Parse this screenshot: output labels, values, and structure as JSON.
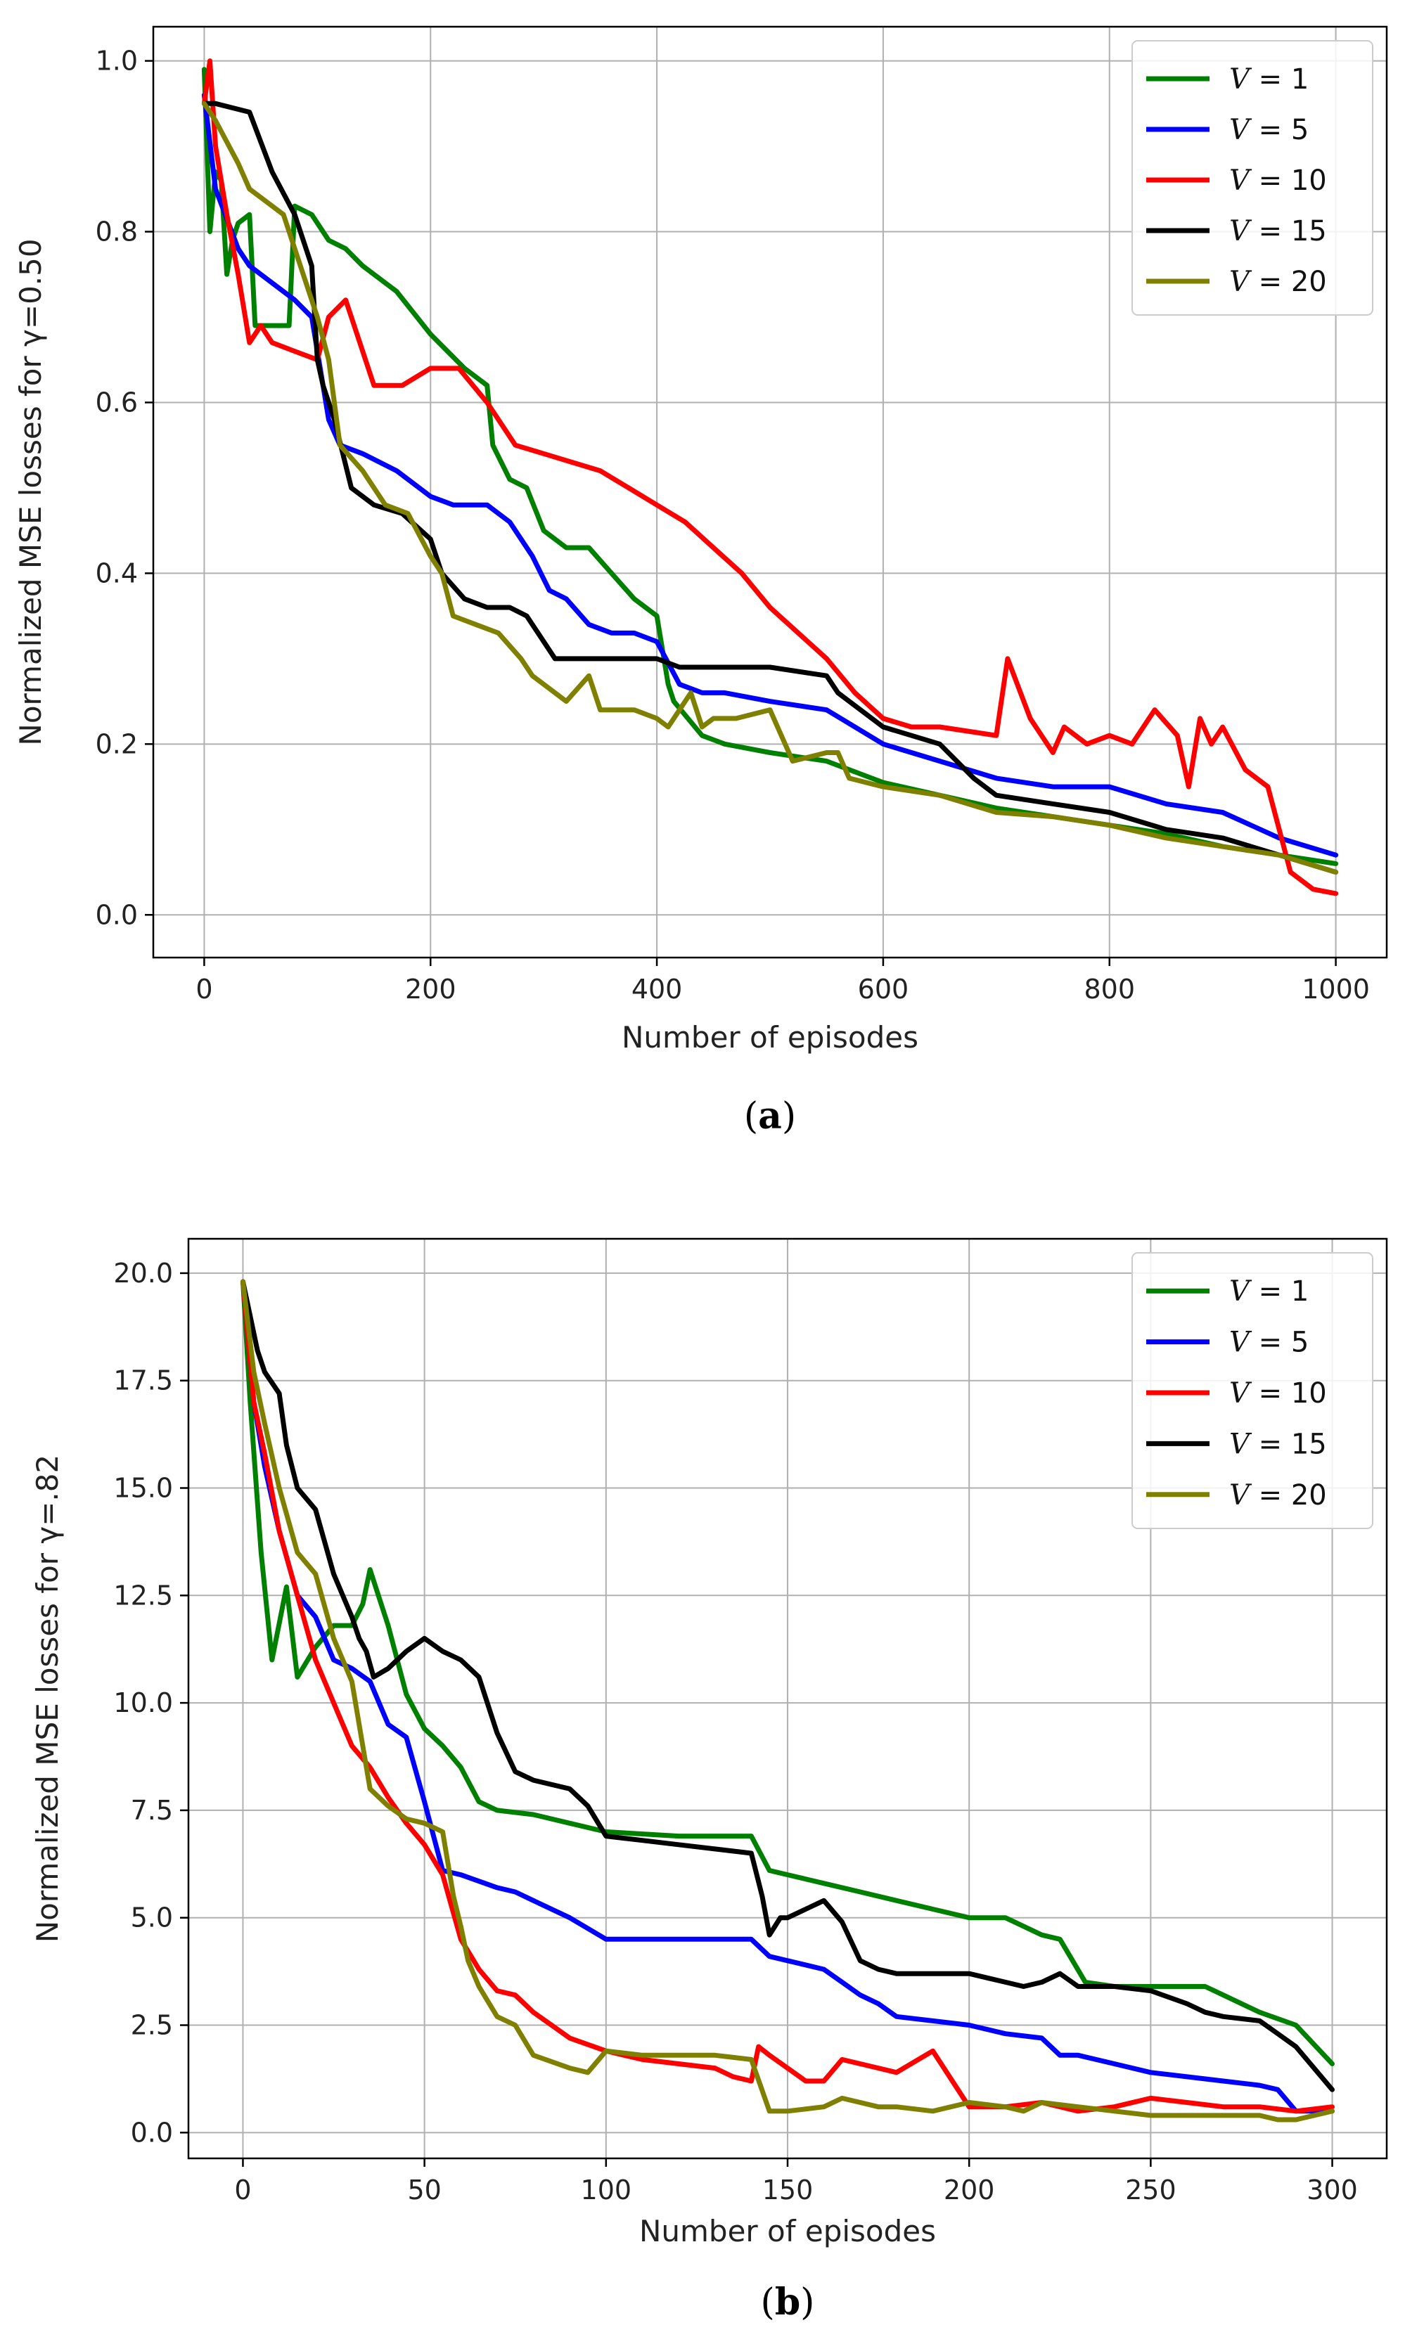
{
  "chart_data": [
    {
      "type": "line",
      "panel_caption": "(a)",
      "caption_letter": "a",
      "xlabel": "Number of episodes",
      "ylabel": "Normalized MSE losses for γ=0.50",
      "xlim": [
        -45,
        1045
      ],
      "ylim": [
        -0.05,
        1.04
      ],
      "xticks": [
        0,
        200,
        400,
        600,
        800,
        1000
      ],
      "yticks": [
        0.0,
        0.2,
        0.4,
        0.6,
        0.8,
        1.0
      ],
      "ytick_decimals": 1,
      "grid": true,
      "legend_position": "top-right",
      "series": [
        {
          "name": "V = 1",
          "var": "V",
          "value": "1",
          "color": "#008000",
          "x": [
            0,
            5,
            10,
            15,
            20,
            25,
            30,
            40,
            45,
            60,
            75,
            80,
            95,
            110,
            125,
            140,
            170,
            200,
            230,
            250,
            255,
            270,
            285,
            300,
            320,
            340,
            360,
            380,
            400,
            410,
            415,
            440,
            460,
            500,
            550,
            600,
            650,
            700,
            750,
            800,
            850,
            900,
            950,
            1000
          ],
          "y": [
            0.99,
            0.8,
            0.87,
            0.86,
            0.75,
            0.79,
            0.81,
            0.82,
            0.69,
            0.69,
            0.69,
            0.83,
            0.82,
            0.79,
            0.78,
            0.76,
            0.73,
            0.68,
            0.64,
            0.62,
            0.55,
            0.51,
            0.5,
            0.45,
            0.43,
            0.43,
            0.4,
            0.37,
            0.35,
            0.27,
            0.25,
            0.21,
            0.2,
            0.19,
            0.18,
            0.155,
            0.14,
            0.125,
            0.115,
            0.105,
            0.095,
            0.08,
            0.07,
            0.06
          ]
        },
        {
          "name": "V = 5",
          "var": "V",
          "value": "5",
          "color": "#0000ff",
          "x": [
            0,
            10,
            30,
            40,
            60,
            80,
            95,
            110,
            120,
            140,
            170,
            200,
            220,
            250,
            270,
            290,
            305,
            320,
            340,
            360,
            380,
            400,
            420,
            440,
            460,
            500,
            550,
            600,
            650,
            700,
            750,
            800,
            850,
            900,
            950,
            1000
          ],
          "y": [
            0.96,
            0.85,
            0.78,
            0.76,
            0.74,
            0.72,
            0.7,
            0.58,
            0.55,
            0.54,
            0.52,
            0.49,
            0.48,
            0.48,
            0.46,
            0.42,
            0.38,
            0.37,
            0.34,
            0.33,
            0.33,
            0.32,
            0.27,
            0.26,
            0.26,
            0.25,
            0.24,
            0.2,
            0.18,
            0.16,
            0.15,
            0.15,
            0.13,
            0.12,
            0.09,
            0.07
          ]
        },
        {
          "name": "V = 10",
          "var": "V",
          "value": "10",
          "color": "#ff0000",
          "x": [
            0,
            5,
            10,
            20,
            30,
            40,
            50,
            60,
            80,
            100,
            110,
            125,
            150,
            175,
            200,
            225,
            250,
            275,
            300,
            325,
            350,
            375,
            400,
            425,
            450,
            475,
            500,
            525,
            550,
            575,
            600,
            625,
            650,
            700,
            710,
            730,
            750,
            760,
            780,
            800,
            820,
            840,
            860,
            870,
            880,
            890,
            900,
            920,
            940,
            960,
            980,
            1000
          ],
          "y": [
            0.95,
            1.0,
            0.9,
            0.82,
            0.75,
            0.67,
            0.69,
            0.67,
            0.66,
            0.65,
            0.7,
            0.72,
            0.62,
            0.62,
            0.64,
            0.64,
            0.6,
            0.55,
            0.54,
            0.53,
            0.52,
            0.5,
            0.48,
            0.46,
            0.43,
            0.4,
            0.36,
            0.33,
            0.3,
            0.26,
            0.23,
            0.22,
            0.22,
            0.21,
            0.3,
            0.23,
            0.19,
            0.22,
            0.2,
            0.21,
            0.2,
            0.24,
            0.21,
            0.15,
            0.23,
            0.2,
            0.22,
            0.17,
            0.15,
            0.05,
            0.03,
            0.025
          ]
        },
        {
          "name": "V = 15",
          "var": "V",
          "value": "15",
          "color": "#000000",
          "x": [
            0,
            10,
            40,
            60,
            80,
            95,
            100,
            105,
            115,
            130,
            150,
            175,
            200,
            210,
            230,
            250,
            270,
            285,
            300,
            310,
            340,
            400,
            420,
            440,
            500,
            550,
            560,
            600,
            650,
            680,
            700,
            750,
            800,
            850,
            900,
            950,
            1000
          ],
          "y": [
            0.95,
            0.95,
            0.94,
            0.87,
            0.82,
            0.76,
            0.65,
            0.62,
            0.58,
            0.5,
            0.48,
            0.47,
            0.44,
            0.4,
            0.37,
            0.36,
            0.36,
            0.35,
            0.32,
            0.3,
            0.3,
            0.3,
            0.29,
            0.29,
            0.29,
            0.28,
            0.26,
            0.22,
            0.2,
            0.16,
            0.14,
            0.13,
            0.12,
            0.1,
            0.09,
            0.07,
            0.05
          ]
        },
        {
          "name": "V = 20",
          "var": "V",
          "value": "20",
          "color": "#808000",
          "x": [
            0,
            10,
            30,
            40,
            70,
            90,
            100,
            110,
            120,
            140,
            160,
            180,
            200,
            210,
            220,
            240,
            260,
            280,
            290,
            300,
            320,
            340,
            350,
            380,
            400,
            410,
            430,
            440,
            450,
            470,
            500,
            520,
            550,
            560,
            570,
            600,
            650,
            700,
            750,
            800,
            850,
            900,
            950,
            1000
          ],
          "y": [
            0.95,
            0.93,
            0.88,
            0.85,
            0.82,
            0.74,
            0.7,
            0.65,
            0.55,
            0.52,
            0.48,
            0.47,
            0.42,
            0.4,
            0.35,
            0.34,
            0.33,
            0.3,
            0.28,
            0.27,
            0.25,
            0.28,
            0.24,
            0.24,
            0.23,
            0.22,
            0.26,
            0.22,
            0.23,
            0.23,
            0.24,
            0.18,
            0.19,
            0.19,
            0.16,
            0.15,
            0.14,
            0.12,
            0.115,
            0.105,
            0.09,
            0.08,
            0.07,
            0.05
          ]
        }
      ]
    },
    {
      "type": "line",
      "panel_caption": "(b)",
      "caption_letter": "b",
      "xlabel": "Number of episodes",
      "ylabel": "Normalized MSE losses for γ=.82",
      "xlim": [
        -15,
        315
      ],
      "ylim": [
        -0.6,
        20.8
      ],
      "xticks": [
        0,
        50,
        100,
        150,
        200,
        250,
        300
      ],
      "yticks": [
        0.0,
        2.5,
        5.0,
        7.5,
        10.0,
        12.5,
        15.0,
        17.5,
        20.0
      ],
      "ytick_decimals": 1,
      "grid": true,
      "legend_position": "top-right",
      "series": [
        {
          "name": "V = 1",
          "var": "V",
          "value": "1",
          "color": "#008000",
          "x": [
            0,
            2,
            5,
            8,
            12,
            15,
            20,
            25,
            30,
            33,
            35,
            40,
            45,
            50,
            55,
            60,
            65,
            70,
            80,
            90,
            100,
            120,
            140,
            145,
            150,
            160,
            170,
            180,
            190,
            200,
            210,
            220,
            225,
            232,
            240,
            250,
            260,
            265,
            270,
            280,
            290,
            300
          ],
          "y": [
            19.8,
            17.0,
            13.5,
            11.0,
            12.7,
            10.6,
            11.3,
            11.8,
            11.8,
            12.3,
            13.1,
            11.8,
            10.2,
            9.4,
            9.0,
            8.5,
            7.7,
            7.5,
            7.4,
            7.2,
            7.0,
            6.9,
            6.9,
            6.1,
            6.0,
            5.8,
            5.6,
            5.4,
            5.2,
            5.0,
            5.0,
            4.6,
            4.5,
            3.5,
            3.4,
            3.4,
            3.4,
            3.4,
            3.2,
            2.8,
            2.5,
            1.6
          ]
        },
        {
          "name": "V = 5",
          "var": "V",
          "value": "5",
          "color": "#0000ff",
          "x": [
            0,
            3,
            6,
            10,
            15,
            20,
            25,
            30,
            35,
            40,
            45,
            50,
            55,
            60,
            70,
            75,
            80,
            90,
            100,
            120,
            140,
            145,
            150,
            160,
            165,
            170,
            175,
            180,
            190,
            200,
            210,
            220,
            225,
            230,
            240,
            250,
            260,
            270,
            280,
            285,
            290,
            300
          ],
          "y": [
            19.8,
            17.0,
            15.5,
            14.0,
            12.5,
            12.0,
            11.0,
            10.8,
            10.5,
            9.5,
            9.2,
            7.7,
            6.1,
            6.0,
            5.7,
            5.6,
            5.4,
            5.0,
            4.5,
            4.5,
            4.5,
            4.1,
            4.0,
            3.8,
            3.5,
            3.2,
            3.0,
            2.7,
            2.6,
            2.5,
            2.3,
            2.2,
            1.8,
            1.8,
            1.6,
            1.4,
            1.3,
            1.2,
            1.1,
            1.0,
            0.5,
            0.5
          ]
        },
        {
          "name": "V = 10",
          "var": "V",
          "value": "10",
          "color": "#ff0000",
          "x": [
            0,
            3,
            6,
            10,
            15,
            20,
            25,
            30,
            35,
            40,
            45,
            50,
            55,
            60,
            65,
            70,
            75,
            80,
            85,
            90,
            100,
            110,
            120,
            130,
            135,
            140,
            142,
            145,
            150,
            155,
            160,
            165,
            170,
            175,
            180,
            190,
            200,
            210,
            220,
            230,
            240,
            250,
            260,
            270,
            280,
            290,
            300
          ],
          "y": [
            19.8,
            17.0,
            15.8,
            14.0,
            12.5,
            11.0,
            10.0,
            9.0,
            8.5,
            7.8,
            7.2,
            6.7,
            6.0,
            4.5,
            3.8,
            3.3,
            3.2,
            2.8,
            2.5,
            2.2,
            1.9,
            1.7,
            1.6,
            1.5,
            1.3,
            1.2,
            2.0,
            1.8,
            1.5,
            1.2,
            1.2,
            1.7,
            1.6,
            1.5,
            1.4,
            1.9,
            0.6,
            0.6,
            0.7,
            0.5,
            0.6,
            0.8,
            0.7,
            0.6,
            0.6,
            0.5,
            0.6
          ]
        },
        {
          "name": "V = 15",
          "var": "V",
          "value": "15",
          "color": "#000000",
          "x": [
            0,
            2,
            4,
            6,
            10,
            12,
            15,
            20,
            25,
            30,
            32,
            34,
            36,
            40,
            45,
            50,
            55,
            60,
            65,
            70,
            75,
            80,
            90,
            95,
            100,
            110,
            120,
            130,
            140,
            143,
            145,
            148,
            150,
            155,
            160,
            165,
            170,
            175,
            180,
            190,
            200,
            205,
            210,
            215,
            220,
            225,
            230,
            240,
            250,
            260,
            265,
            270,
            280,
            285,
            290,
            300
          ],
          "y": [
            19.8,
            19.0,
            18.2,
            17.7,
            17.2,
            16.0,
            15.0,
            14.5,
            13.0,
            12.0,
            11.5,
            11.2,
            10.6,
            10.8,
            11.2,
            11.5,
            11.2,
            11.0,
            10.6,
            9.3,
            8.4,
            8.2,
            8.0,
            7.6,
            6.9,
            6.8,
            6.7,
            6.6,
            6.5,
            5.5,
            4.6,
            5.0,
            5.0,
            5.2,
            5.4,
            4.9,
            4.0,
            3.8,
            3.7,
            3.7,
            3.7,
            3.6,
            3.5,
            3.4,
            3.5,
            3.7,
            3.4,
            3.4,
            3.3,
            3.0,
            2.8,
            2.7,
            2.6,
            2.3,
            2.0,
            1.0
          ]
        },
        {
          "name": "V = 20",
          "var": "V",
          "value": "20",
          "color": "#808000",
          "x": [
            0,
            3,
            6,
            10,
            15,
            20,
            25,
            30,
            35,
            40,
            45,
            50,
            55,
            58,
            60,
            62,
            65,
            70,
            75,
            80,
            90,
            95,
            100,
            110,
            120,
            130,
            140,
            145,
            150,
            160,
            165,
            170,
            175,
            180,
            190,
            200,
            210,
            215,
            220,
            230,
            240,
            250,
            260,
            270,
            280,
            285,
            290,
            300
          ],
          "y": [
            19.8,
            17.7,
            16.5,
            15.0,
            13.5,
            13.0,
            11.5,
            10.5,
            8.0,
            7.6,
            7.3,
            7.2,
            7.0,
            5.5,
            4.8,
            4.0,
            3.4,
            2.7,
            2.5,
            1.8,
            1.5,
            1.4,
            1.9,
            1.8,
            1.8,
            1.8,
            1.7,
            0.5,
            0.5,
            0.6,
            0.8,
            0.7,
            0.6,
            0.6,
            0.5,
            0.7,
            0.6,
            0.5,
            0.7,
            0.6,
            0.5,
            0.4,
            0.4,
            0.4,
            0.4,
            0.3,
            0.3,
            0.5
          ]
        }
      ]
    }
  ]
}
